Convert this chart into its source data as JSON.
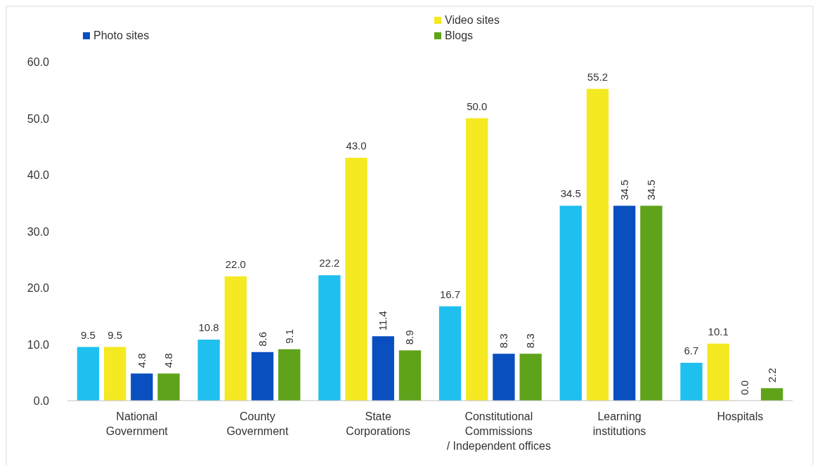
{
  "chart_data": {
    "type": "bar",
    "categories": [
      "National\nGovernment",
      "County\nGovernment",
      "State\nCorporations",
      "Constitutional\nCommissions\n/ Independent offices",
      "Learning\ninstitutions",
      "Hospitals"
    ],
    "series": [
      {
        "color": "#1fbfef",
        "values": [
          9.5,
          10.8,
          22.2,
          16.7,
          34.5,
          6.7
        ],
        "value_labels": [
          "9.5",
          "10.8",
          "22.2",
          "16.7",
          "34.5",
          "6.7"
        ]
      },
      {
        "name": "Video sites",
        "color": "#f5e922",
        "values": [
          9.5,
          22.0,
          43.0,
          50.0,
          55.2,
          10.1
        ],
        "value_labels": [
          "9.5",
          "22.0",
          "43.0",
          "50.0",
          "55.2",
          "10.1"
        ]
      },
      {
        "name": "Photo sites",
        "color": "#0a4fbf",
        "values": [
          4.8,
          8.6,
          11.4,
          8.3,
          34.5,
          0.0
        ],
        "value_labels": [
          "4.8",
          "8.6",
          "11.4",
          "8.3",
          "34.5",
          "0.0"
        ]
      },
      {
        "name": "Blogs",
        "color": "#5fa31a",
        "values": [
          4.8,
          9.1,
          8.9,
          8.3,
          34.5,
          2.2
        ],
        "value_labels": [
          "4.8",
          "9.1",
          "8.9",
          "8.3",
          "34.5",
          "2.2"
        ]
      }
    ],
    "ylim": [
      0,
      60
    ],
    "yticks": [
      {
        "value": 0,
        "label": "0.0"
      },
      {
        "value": 10,
        "label": "10.0"
      },
      {
        "value": 20,
        "label": "20.0"
      },
      {
        "value": 30,
        "label": "30.0"
      },
      {
        "value": 40,
        "label": "40.0"
      },
      {
        "value": 50,
        "label": "50.0"
      },
      {
        "value": 60,
        "label": "60.0"
      }
    ],
    "legend": "top",
    "grid": false
  }
}
